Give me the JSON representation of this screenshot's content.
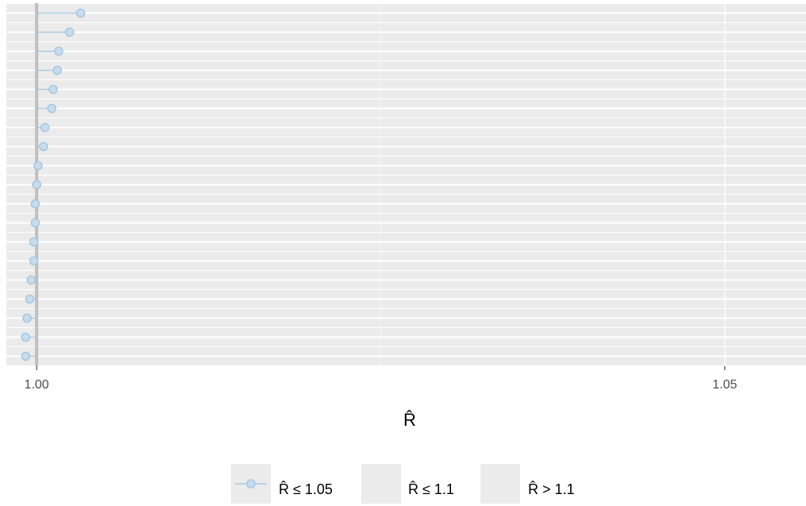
{
  "chart_data": {
    "type": "scatter",
    "title": "",
    "xlabel": "R̂",
    "ylabel": "",
    "xlim": [
      0.9978,
      1.0559
    ],
    "x_ticks": [
      {
        "value": 1.0,
        "label": "1.00"
      },
      {
        "value": 1.05,
        "label": "1.05"
      }
    ],
    "reference_line": 1.0,
    "threshold_line": 1.05,
    "grid": true,
    "legend_position": "bottom",
    "legend": [
      {
        "key": "le105",
        "label": "R̂ ≤ 1.05",
        "color": "#a6c8e0"
      },
      {
        "key": "le11",
        "label": "R̂ ≤ 1.1",
        "color": "#d9d9d9"
      },
      {
        "key": "gt11",
        "label": "R̂ > 1.1",
        "color": "#d9d9d9"
      }
    ],
    "series": [
      {
        "name": "R̂ ≤ 1.05",
        "values": [
          1.0032,
          1.0024,
          1.0016,
          1.0015,
          1.0012,
          1.0011,
          1.0006,
          1.0005,
          1.0001,
          1.0,
          0.9999,
          0.9999,
          0.9998,
          0.9998,
          0.9996,
          0.9995,
          0.9993,
          0.9992,
          0.9992
        ]
      }
    ]
  },
  "colors": {
    "panel": "#ebebeb",
    "grid": "#ffffff",
    "reference_line": "#bfbfbf",
    "threshold_line": "#ffffff",
    "point_fill": "#c9dcec",
    "point_stroke": "#a6c8e0",
    "segment": "#a6c8e0"
  }
}
